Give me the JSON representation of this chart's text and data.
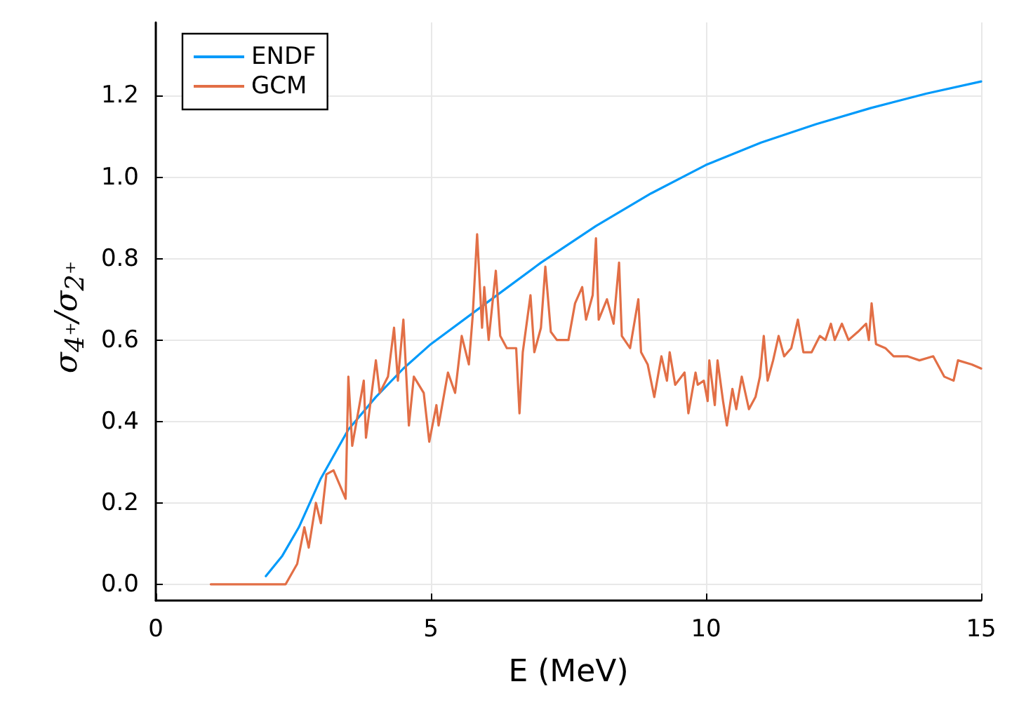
{
  "chart_data": {
    "type": "line",
    "xlabel": "E (MeV)",
    "ylabel": "σ$_{4⁺}$/σ$_{2⁺}$",
    "x": [
      1,
      2.36,
      2.57,
      2.7,
      2.78,
      2.91,
      3.0,
      3.1,
      3.23,
      3.45,
      3.5,
      3.57,
      3.78,
      3.82,
      4.0,
      4.07,
      4.22,
      4.33,
      4.4,
      4.5,
      4.6,
      4.69,
      4.87,
      4.97,
      5.1,
      5.14,
      5.31,
      5.44,
      5.56,
      5.69,
      5.76,
      5.84,
      5.93,
      5.97,
      6.05,
      6.18,
      6.26,
      6.38,
      6.55,
      6.61,
      6.67,
      6.81,
      6.88,
      7.0,
      7.08,
      7.18,
      7.29,
      7.5,
      7.62,
      7.75,
      7.82,
      7.94,
      8.0,
      8.05,
      8.2,
      8.32,
      8.42,
      8.47,
      8.62,
      8.77,
      8.82,
      8.94,
      9.06,
      9.19,
      9.29,
      9.34,
      9.44,
      9.61,
      9.68,
      9.81,
      9.85,
      9.96,
      10.03,
      10.06,
      10.16,
      10.21,
      10.31,
      10.38,
      10.48,
      10.55,
      10.65,
      10.78,
      10.9,
      10.98,
      11.05,
      11.12,
      11.22,
      11.32,
      11.42,
      11.55,
      11.67,
      11.77,
      11.92,
      12.07,
      12.17,
      12.27,
      12.34,
      12.47,
      12.59,
      12.76,
      12.91,
      12.96,
      13.01,
      13.09,
      13.26,
      13.41,
      13.66,
      13.88,
      14.13,
      14.33,
      14.5,
      14.58,
      14.83,
      15.0
    ],
    "xlim": [
      0,
      15
    ],
    "xticks": [
      0,
      5,
      10,
      15
    ],
    "ylim": [
      -0.04,
      1.38
    ],
    "yticks": [
      {
        "value": 0,
        "label": "0.0"
      },
      {
        "value": 0.2,
        "label": "0.2"
      },
      {
        "value": 0.4,
        "label": "0.4"
      },
      {
        "value": 0.6,
        "label": "0.6"
      },
      {
        "value": 0.8,
        "label": "0.8"
      },
      {
        "value": 1,
        "label": "1.0"
      },
      {
        "value": 1.2,
        "label": "1.2"
      }
    ],
    "grid": true,
    "legend": "top left",
    "marker": "none",
    "line_style": "solid",
    "series": [
      {
        "name": "ENDF",
        "color": "#009afa",
        "x": [
          2,
          2.3,
          2.6,
          3,
          3.5,
          4,
          4.5,
          5,
          6,
          7,
          8,
          9,
          10,
          11,
          12,
          13,
          14,
          15
        ],
        "values": [
          0.02,
          0.07,
          0.14,
          0.26,
          0.38,
          0.46,
          0.53,
          0.59,
          0.69,
          0.79,
          0.88,
          0.96,
          1.03,
          1.085,
          1.13,
          1.17,
          1.205,
          1.235
        ]
      },
      {
        "name": "GCM",
        "color": "#e26f46",
        "values": [
          0,
          0,
          0.05,
          0.14,
          0.09,
          0.2,
          0.15,
          0.27,
          0.28,
          0.21,
          0.51,
          0.34,
          0.5,
          0.36,
          0.55,
          0.47,
          0.51,
          0.63,
          0.5,
          0.65,
          0.39,
          0.51,
          0.47,
          0.35,
          0.44,
          0.39,
          0.52,
          0.47,
          0.61,
          0.54,
          0.66,
          0.86,
          0.63,
          0.73,
          0.6,
          0.77,
          0.61,
          0.58,
          0.58,
          0.42,
          0.57,
          0.71,
          0.57,
          0.63,
          0.78,
          0.62,
          0.6,
          0.6,
          0.69,
          0.73,
          0.65,
          0.71,
          0.85,
          0.65,
          0.7,
          0.64,
          0.79,
          0.61,
          0.58,
          0.7,
          0.57,
          0.54,
          0.46,
          0.56,
          0.5,
          0.57,
          0.49,
          0.52,
          0.42,
          0.52,
          0.49,
          0.5,
          0.45,
          0.55,
          0.44,
          0.55,
          0.45,
          0.39,
          0.48,
          0.43,
          0.51,
          0.43,
          0.46,
          0.51,
          0.61,
          0.5,
          0.55,
          0.61,
          0.56,
          0.58,
          0.65,
          0.57,
          0.57,
          0.61,
          0.6,
          0.64,
          0.6,
          0.64,
          0.6,
          0.62,
          0.64,
          0.6,
          0.69,
          0.59,
          0.58,
          0.56,
          0.56,
          0.55,
          0.56,
          0.51,
          0.5,
          0.55,
          0.54,
          0.53
        ]
      }
    ]
  }
}
